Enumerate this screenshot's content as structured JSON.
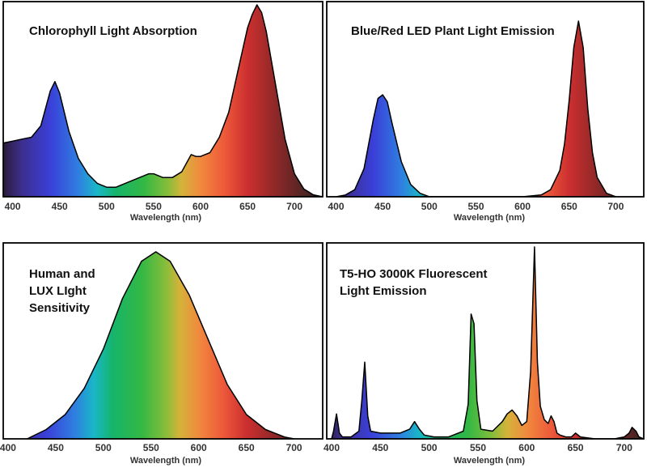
{
  "chart_data": [
    {
      "type": "area",
      "title": "Chlorophyll Light Absorption",
      "xlabel": "Wavelength (nm)",
      "ylabel": "",
      "xlim": [
        390,
        730
      ],
      "ylim": [
        0,
        1
      ],
      "x_ticks": [
        400,
        450,
        500,
        550,
        600,
        650,
        700
      ],
      "grid": false,
      "x": [
        390,
        400,
        410,
        420,
        430,
        440,
        445,
        450,
        460,
        470,
        480,
        490,
        500,
        510,
        520,
        530,
        540,
        545,
        550,
        560,
        570,
        580,
        590,
        595,
        600,
        610,
        620,
        630,
        640,
        650,
        655,
        660,
        665,
        670,
        680,
        690,
        700,
        710,
        720,
        730
      ],
      "y": [
        0.28,
        0.29,
        0.3,
        0.31,
        0.37,
        0.55,
        0.6,
        0.54,
        0.34,
        0.2,
        0.12,
        0.07,
        0.05,
        0.05,
        0.07,
        0.09,
        0.11,
        0.12,
        0.12,
        0.1,
        0.1,
        0.13,
        0.22,
        0.21,
        0.21,
        0.23,
        0.31,
        0.44,
        0.66,
        0.88,
        0.95,
        1.0,
        0.96,
        0.86,
        0.58,
        0.3,
        0.12,
        0.04,
        0.01,
        0.0
      ]
    },
    {
      "type": "area",
      "title": "Blue/Red LED Plant Light Emission",
      "xlabel": "Wavelength (nm)",
      "ylabel": "",
      "xlim": [
        390,
        730
      ],
      "ylim": [
        0,
        1
      ],
      "x_ticks": [
        400,
        450,
        500,
        550,
        600,
        650,
        700
      ],
      "grid": false,
      "x": [
        400,
        410,
        420,
        430,
        440,
        445,
        450,
        455,
        460,
        470,
        480,
        490,
        500,
        550,
        600,
        620,
        630,
        640,
        645,
        650,
        655,
        660,
        665,
        670,
        675,
        680,
        690,
        700
      ],
      "y": [
        0.0,
        0.01,
        0.04,
        0.16,
        0.44,
        0.56,
        0.58,
        0.54,
        0.42,
        0.2,
        0.07,
        0.02,
        0.0,
        0.0,
        0.0,
        0.01,
        0.04,
        0.15,
        0.3,
        0.55,
        0.85,
        1.0,
        0.85,
        0.5,
        0.25,
        0.11,
        0.02,
        0.0
      ]
    },
    {
      "type": "area",
      "title": "Human and LUX LIght Sensitivity",
      "title_lines": [
        "Human and",
        "LUX LIght",
        "Sensitivity"
      ],
      "xlabel": "Wavelength (nm)",
      "ylabel": "",
      "xlim": [
        395,
        730
      ],
      "ylim": [
        0,
        1
      ],
      "x_ticks": [
        400,
        450,
        500,
        550,
        600,
        650,
        700
      ],
      "grid": false,
      "x": [
        420,
        440,
        460,
        480,
        500,
        520,
        540,
        555,
        570,
        590,
        610,
        630,
        650,
        670,
        690,
        700
      ],
      "y": [
        0.0,
        0.05,
        0.13,
        0.27,
        0.48,
        0.75,
        0.95,
        1.0,
        0.95,
        0.77,
        0.53,
        0.29,
        0.13,
        0.05,
        0.01,
        0.0
      ]
    },
    {
      "type": "area",
      "title": "T5-HO 3000K Fluorescent Light Emission",
      "title_lines": [
        "T5-HO 3000K Fluorescent",
        "Light Emission"
      ],
      "xlabel": "Wavelength (nm)",
      "ylabel": "",
      "xlim": [
        395,
        720
      ],
      "ylim": [
        0,
        1
      ],
      "x_ticks": [
        400,
        450,
        500,
        550,
        600,
        650,
        700
      ],
      "grid": false,
      "x": [
        400,
        402,
        405,
        408,
        411,
        420,
        428,
        431,
        434,
        437,
        440,
        450,
        470,
        480,
        485,
        490,
        495,
        505,
        520,
        535,
        540,
        543,
        546,
        549,
        553,
        565,
        575,
        580,
        585,
        590,
        595,
        600,
        604,
        608,
        611,
        614,
        618,
        622,
        625,
        628,
        631,
        634,
        640,
        646,
        650,
        655,
        670,
        690,
        700,
        705,
        708,
        712,
        715,
        720
      ],
      "y": [
        0.0,
        0.04,
        0.13,
        0.03,
        0.01,
        0.01,
        0.04,
        0.2,
        0.4,
        0.12,
        0.04,
        0.03,
        0.03,
        0.05,
        0.09,
        0.05,
        0.02,
        0.01,
        0.01,
        0.04,
        0.18,
        0.65,
        0.6,
        0.2,
        0.05,
        0.04,
        0.09,
        0.13,
        0.15,
        0.12,
        0.07,
        0.09,
        0.35,
        1.0,
        0.4,
        0.17,
        0.1,
        0.08,
        0.12,
        0.09,
        0.03,
        0.02,
        0.01,
        0.01,
        0.03,
        0.01,
        0.0,
        0.0,
        0.01,
        0.03,
        0.06,
        0.04,
        0.01,
        0.0
      ]
    }
  ],
  "spectrum_colors": [
    {
      "nm": 380,
      "color": "#2b1b3a"
    },
    {
      "nm": 410,
      "color": "#3d2f8f"
    },
    {
      "nm": 440,
      "color": "#3a3fd8"
    },
    {
      "nm": 470,
      "color": "#2f7fe0"
    },
    {
      "nm": 490,
      "color": "#19b7c7"
    },
    {
      "nm": 510,
      "color": "#16b46a"
    },
    {
      "nm": 540,
      "color": "#33b844"
    },
    {
      "nm": 565,
      "color": "#86bd3a"
    },
    {
      "nm": 580,
      "color": "#d4b33a"
    },
    {
      "nm": 600,
      "color": "#f08a3e"
    },
    {
      "nm": 625,
      "color": "#ee5a3a"
    },
    {
      "nm": 650,
      "color": "#cc2f2f"
    },
    {
      "nm": 680,
      "color": "#8e2828"
    },
    {
      "nm": 720,
      "color": "#3d2323"
    }
  ]
}
